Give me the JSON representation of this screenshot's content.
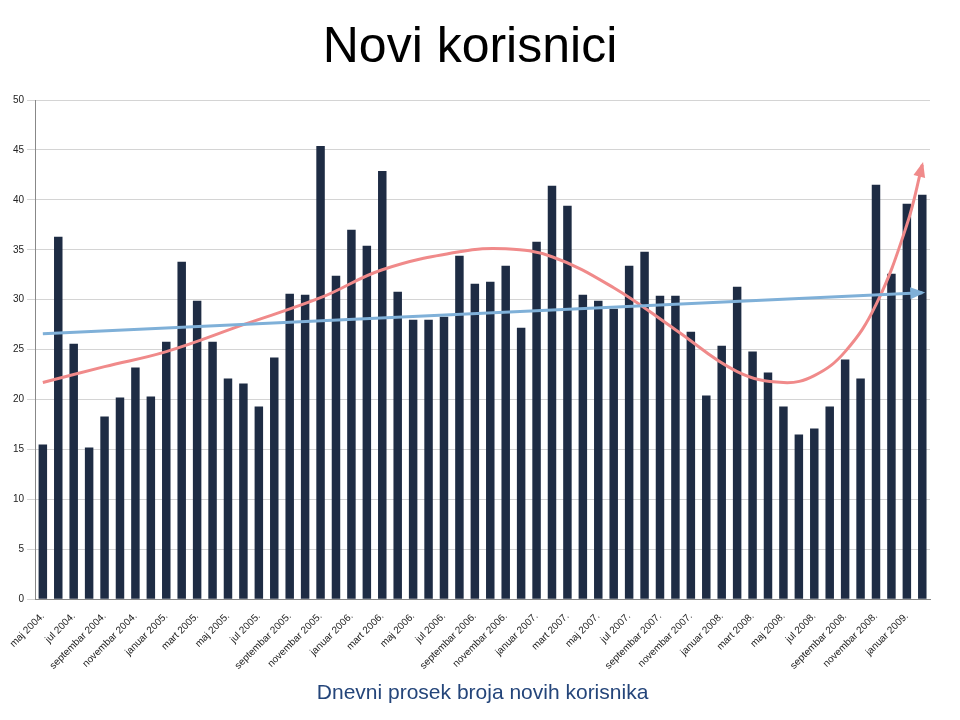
{
  "chart_data": {
    "type": "bar",
    "title": "Novi korisnici",
    "xlabel": "Dnevni prosek broja novih korisnika",
    "categories": [
      "maj 2004.",
      null,
      "jul 2004.",
      null,
      "septembar 2004.",
      null,
      "novembar 2004.",
      null,
      "januar 2005.",
      null,
      "mart 2005.",
      null,
      "maj 2005.",
      null,
      "jul 2005.",
      null,
      "septembar 2005.",
      null,
      "novembar 2005.",
      null,
      "januar 2006.",
      null,
      "mart 2006.",
      null,
      "maj 2006.",
      null,
      "jul 2006.",
      null,
      "septembar 2006.",
      null,
      "novembar 2006.",
      null,
      "januar 2007.",
      null,
      "mart 2007.",
      null,
      "maj 2007.",
      null,
      "jul 2007.",
      null,
      "septembar 2007.",
      null,
      "novembar 2007.",
      null,
      "januar 2008.",
      null,
      "mart 2008.",
      null,
      "maj 2008.",
      null,
      "jul 2008.",
      null,
      "septembar 2008.",
      null,
      "novembar 2008.",
      null,
      "januar 2009.",
      null
    ],
    "series": [
      {
        "type": "bar",
        "color": "#1e2c44",
        "values": [
          15.5,
          36.3,
          25.6,
          15.2,
          18.3,
          20.2,
          23.2,
          20.3,
          25.8,
          33.8,
          29.9,
          25.8,
          22.1,
          21.6,
          19.3,
          24.2,
          30.6,
          30.5,
          45.4,
          32.4,
          37,
          35.4,
          42.9,
          30.8,
          28,
          28,
          28.3,
          34.4,
          31.6,
          31.8,
          33.4,
          27.2,
          35.8,
          41.4,
          39.4,
          30.5,
          29.9,
          29.1,
          33.4,
          34.8,
          30.4,
          30.4,
          26.8,
          20.4,
          25.4,
          31.3,
          24.8,
          22.7,
          19.3,
          16.5,
          17.1,
          19.3,
          24,
          22.1,
          41.5,
          32.6,
          39.6,
          40.5
        ]
      },
      {
        "type": "line",
        "color": "#7fb0d8",
        "marker": "arrow",
        "values": [
          26.6,
          null,
          null,
          null,
          null,
          null,
          null,
          null,
          null,
          null,
          null,
          null,
          null,
          null,
          null,
          null,
          null,
          null,
          null,
          null,
          null,
          null,
          null,
          null,
          null,
          null,
          null,
          null,
          null,
          null,
          null,
          null,
          null,
          null,
          null,
          null,
          null,
          null,
          null,
          null,
          null,
          null,
          null,
          null,
          null,
          null,
          null,
          null,
          null,
          null,
          null,
          null,
          null,
          null,
          null,
          null,
          null,
          30.7
        ]
      },
      {
        "type": "line",
        "color": "#f08a8a",
        "marker": "arrow",
        "values": [
          21.7,
          null,
          null,
          null,
          23.3,
          null,
          null,
          null,
          24.8,
          null,
          null,
          null,
          null,
          27.5,
          null,
          null,
          null,
          null,
          30.2,
          null,
          null,
          null,
          33,
          null,
          null,
          null,
          null,
          34.8,
          null,
          null,
          35.1,
          null,
          null,
          34.3,
          null,
          null,
          null,
          31.2,
          null,
          null,
          null,
          27,
          null,
          null,
          null,
          22.8,
          null,
          null,
          21.7,
          null,
          22.4,
          null,
          24.8,
          null,
          29.5,
          null,
          37.5,
          43.5
        ]
      }
    ],
    "ylim": [
      0,
      50
    ],
    "yticks": [
      0,
      5,
      10,
      15,
      20,
      25,
      30,
      35,
      40,
      45,
      50
    ],
    "grid": true
  }
}
